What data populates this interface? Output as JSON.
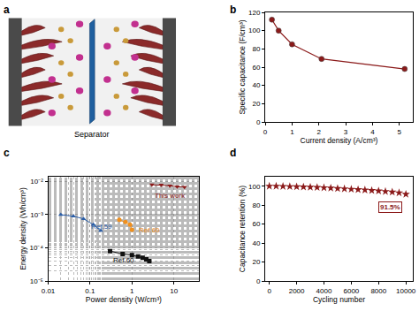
{
  "chart_data": [
    {
      "type": "line",
      "title": "b",
      "x_label": "Current density (A/cm³)",
      "y_label": "Specific capacitance (F/cm³)",
      "x": [
        0.25,
        0.5,
        1,
        2.1,
        5.2
      ],
      "values": [
        112,
        100,
        85,
        69,
        58
      ],
      "color": "#8b1a1a",
      "marker": "circle",
      "xlim": [
        0,
        5.5
      ],
      "xticks": [
        0,
        1,
        2,
        3,
        4,
        5
      ],
      "ylim": [
        0,
        120
      ],
      "yticks": [
        0,
        20,
        40,
        60,
        80,
        100,
        120
      ],
      "grid": false
    },
    {
      "type": "line",
      "title": "c",
      "log": true,
      "grid": true,
      "x_label": "Power density (W/cm³)",
      "y_label": "Energy density (Wh/cm³)",
      "xlim": [
        0.01,
        40
      ],
      "xticks": [
        0.01,
        0.1,
        1,
        10
      ],
      "ylim": [
        1e-05,
        0.014
      ],
      "yticks": [
        {
          "value": 1e-05,
          "label": "10⁻⁵"
        },
        {
          "value": 0.0001,
          "label": "10⁻⁴"
        },
        {
          "value": 0.001,
          "label": "10⁻³"
        },
        {
          "value": 0.01,
          "label": "10⁻²"
        }
      ],
      "series": [
        {
          "name": "This work",
          "color": "#8b1a1a",
          "marker": "triangle-down",
          "x": [
            3,
            5,
            8,
            12,
            18
          ],
          "values": [
            0.008,
            0.0079,
            0.0075,
            0.007,
            0.0068
          ]
        },
        {
          "name": "Ref.59",
          "color": "#2b5ea7",
          "marker": "triangle-up",
          "x": [
            0.02,
            0.04,
            0.07,
            0.12,
            0.18
          ],
          "values": [
            0.001,
            0.0009,
            0.00075,
            0.0005,
            0.00033
          ]
        },
        {
          "name": "Ref.60",
          "color": "#f0901e",
          "marker": "circle",
          "x": [
            0.5,
            0.7,
            0.9,
            1.0
          ],
          "values": [
            0.0007,
            0.0006,
            0.0005,
            0.00035
          ]
        },
        {
          "name": "Ref.60",
          "color": "#111111",
          "marker": "square",
          "x": [
            0.3,
            0.6,
            1.0,
            1.4,
            1.8,
            2.2,
            2.6
          ],
          "values": [
            8e-05,
            6.5e-05,
            6e-05,
            5.5e-05,
            5e-05,
            4.5e-05,
            4e-05
          ]
        }
      ]
    },
    {
      "type": "scatter",
      "title": "d",
      "grid": false,
      "x_label": "Cycling number",
      "y_label": "Capacitance retention (%)",
      "x": [
        0,
        500,
        1000,
        1500,
        2000,
        2500,
        3000,
        3500,
        4000,
        4500,
        5000,
        5500,
        6000,
        6500,
        7000,
        7500,
        8000,
        8500,
        9000,
        9500,
        10000
      ],
      "values": [
        100,
        100,
        99.8,
        99.6,
        99.4,
        99.2,
        99,
        98.7,
        98.4,
        98,
        97.6,
        97.2,
        96.8,
        96.4,
        96,
        95.5,
        95,
        94.4,
        93.8,
        93,
        91.5
      ],
      "color": "#8b1a1a",
      "marker": "star",
      "xlim": [
        -300,
        10500
      ],
      "xticks": [
        0,
        2000,
        4000,
        6000,
        8000,
        10000
      ],
      "ylim": [
        0,
        110
      ],
      "yticks": [
        0,
        20,
        40,
        60,
        80,
        100
      ],
      "annotations": [
        "91.5%"
      ]
    }
  ],
  "diagram": {
    "title": "a",
    "label": "Separator"
  }
}
